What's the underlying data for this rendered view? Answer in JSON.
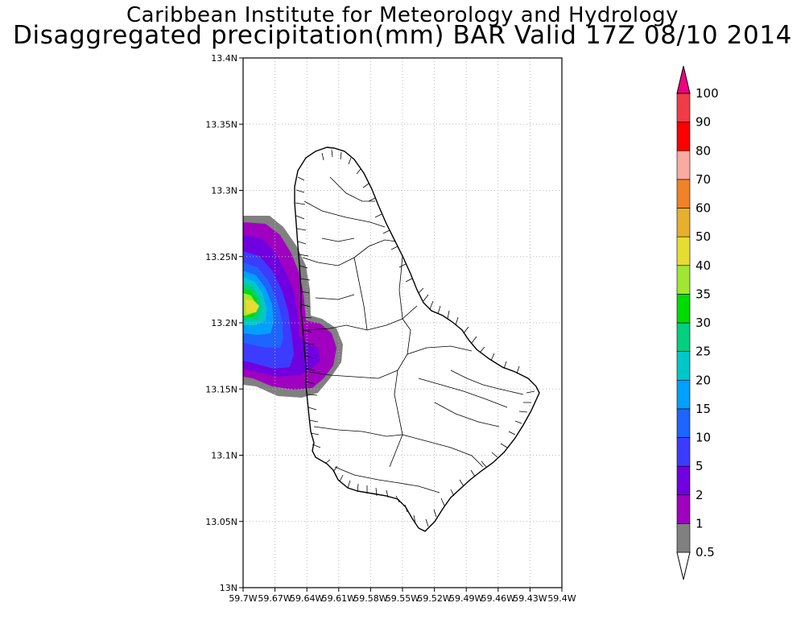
{
  "title_line1": "Caribbean Institute for Meteorology and Hydrology",
  "title_line2": "Disaggregated precipitation(mm) BAR Valid 17Z 08/10 2014",
  "map": {
    "region": "Barbados",
    "lon_range": [
      -59.7,
      -59.4
    ],
    "lat_range": [
      13.0,
      13.4
    ],
    "x_tick_labels": [
      "59.7W",
      "59.67W",
      "59.64W",
      "59.61W",
      "59.58W",
      "59.55W",
      "59.52W",
      "59.49W",
      "59.46W",
      "59.43W",
      "59.4W"
    ],
    "y_tick_labels": [
      "13N",
      "13.05N",
      "13.1N",
      "13.15N",
      "13.2N",
      "13.25N",
      "13.3N",
      "13.35N",
      "13.4N"
    ],
    "grid": true,
    "precip_max_location": {
      "lon": -59.69,
      "lat": 13.21
    }
  },
  "colorbar": {
    "levels": [
      "0.5",
      "1",
      "2",
      "5",
      "10",
      "15",
      "20",
      "25",
      "30",
      "35",
      "40",
      "50",
      "60",
      "70",
      "80",
      "90",
      "100"
    ],
    "colors": [
      "#808080",
      "#a000c0",
      "#7000e0",
      "#3c3cff",
      "#1e64ff",
      "#00a0ff",
      "#00c8c8",
      "#00d080",
      "#00dc00",
      "#a0e632",
      "#e6dc32",
      "#e6af2d",
      "#f08228",
      "#faaaa0",
      "#ff0000",
      "#f03c46",
      "#f00082"
    ]
  }
}
